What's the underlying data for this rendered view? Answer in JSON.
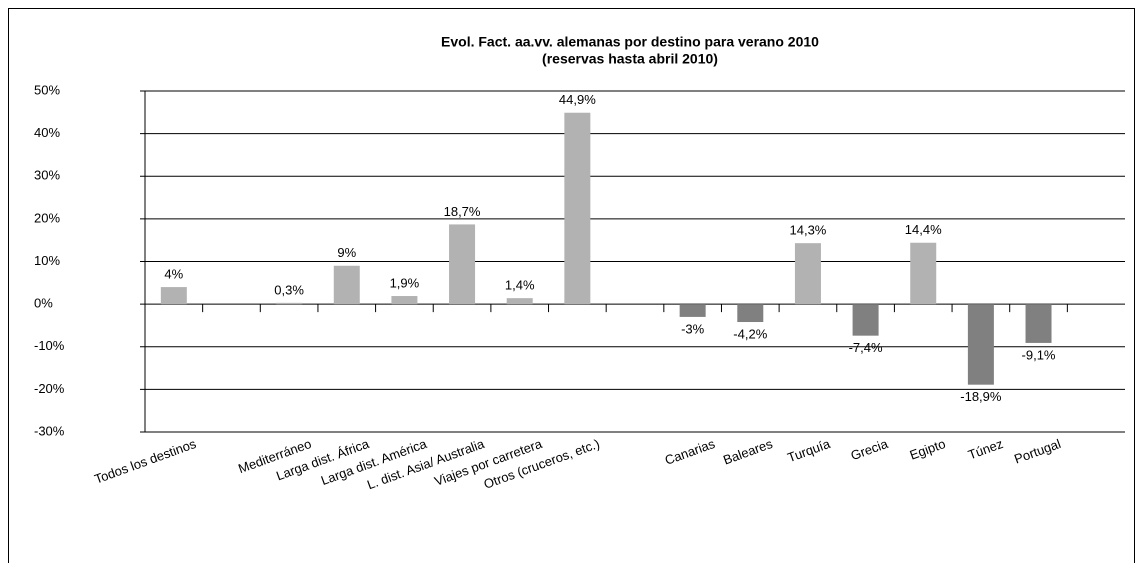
{
  "chart_data": {
    "type": "bar",
    "title": "Evol. Fact. aa.vv. alemanas por destino para verano 2010",
    "subtitle": "(reservas hasta abril 2010)",
    "categories": [
      "Todos los destinos",
      null,
      "Mediterráneo",
      "Larga dist. África",
      "Larga dist. América",
      "L. dist. Asia/ Australia",
      "Viajes por carretera",
      "Otros (cruceros, etc.)",
      null,
      "Canarias",
      "Baleares",
      "Turquía",
      "Grecia",
      "Egipto",
      "Túnez",
      "Portugal",
      null
    ],
    "values": [
      4,
      null,
      0.3,
      9,
      1.9,
      18.7,
      1.4,
      44.9,
      null,
      -3,
      -4.2,
      14.3,
      -7.4,
      14.4,
      -18.9,
      -9.1,
      null
    ],
    "value_labels": [
      "4%",
      null,
      "0,3%",
      "9%",
      "1,9%",
      "18,7%",
      "1,4%",
      "44,9%",
      null,
      "-3%",
      "-4,2%",
      "14,3%",
      "-7,4%",
      "14,4%",
      "-18,9%",
      "-9,1%",
      null
    ],
    "positive_color": "#b2b2b2",
    "negative_color": "#808080",
    "ylim": [
      -30,
      50
    ],
    "yticks": [
      {
        "value": -30,
        "label": "-30%"
      },
      {
        "value": -20,
        "label": "-20%"
      },
      {
        "value": -10,
        "label": "-10%"
      },
      {
        "value": 0,
        "label": "0%"
      },
      {
        "value": 10,
        "label": "10%"
      },
      {
        "value": 20,
        "label": "20%"
      },
      {
        "value": 30,
        "label": "30%"
      },
      {
        "value": 40,
        "label": "40%"
      },
      {
        "value": 50,
        "label": "50%"
      }
    ],
    "grid": true
  }
}
